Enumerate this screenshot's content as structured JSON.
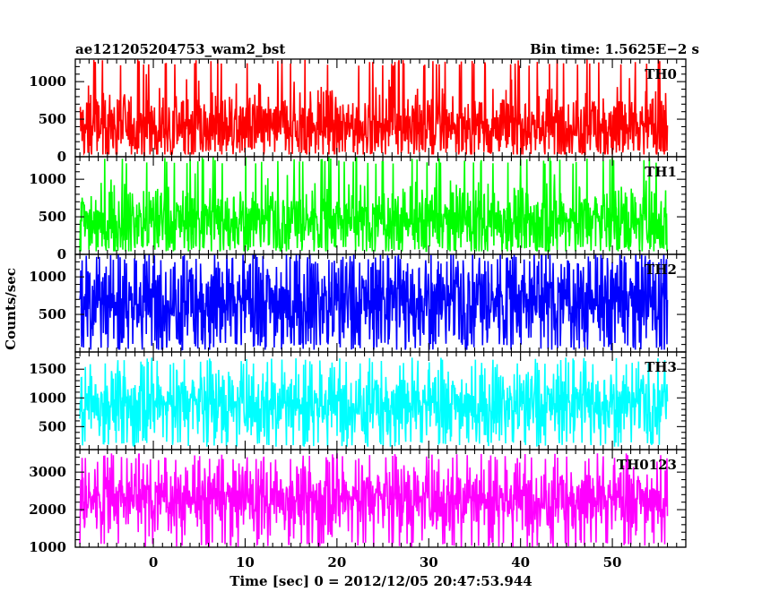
{
  "chart_data": {
    "type": "line",
    "title_left": "ae121205204753_wam2_bst",
    "title_right": "Bin time: 1.5625E−2 s",
    "xlabel": "Time [sec] 0 = 2012/12/05 20:47:53.944",
    "ylabel": "Counts/sec",
    "xlim": [
      -8.5,
      58
    ],
    "xticks": [
      0,
      10,
      20,
      30,
      40,
      50
    ],
    "data_x_range": [
      -8,
      56
    ],
    "bin_time": 0.015625,
    "panels": [
      {
        "name": "TH0",
        "color": "#ff0000",
        "ylim": [
          0,
          1300
        ],
        "yticks": [
          0,
          500,
          1000
        ],
        "data_min": 30,
        "data_max": 1300,
        "mean": 420,
        "spread": 230
      },
      {
        "name": "TH1",
        "color": "#00ff00",
        "ylim": [
          0,
          1300
        ],
        "yticks": [
          0,
          500,
          1000
        ],
        "data_min": 40,
        "data_max": 1300,
        "mean": 450,
        "spread": 230
      },
      {
        "name": "TH2",
        "color": "#0000ff",
        "ylim": [
          0,
          1300
        ],
        "yticks": [
          500,
          1000
        ],
        "data_min": 30,
        "data_max": 1300,
        "mean": 680,
        "spread": 320
      },
      {
        "name": "TH3",
        "color": "#00ffff",
        "ylim": [
          100,
          1800
        ],
        "yticks": [
          500,
          1000,
          1500
        ],
        "data_min": 150,
        "data_max": 1700,
        "mean": 900,
        "spread": 300
      },
      {
        "name": "TH0123",
        "color": "#ff00ff",
        "ylim": [
          1000,
          3600
        ],
        "yticks": [
          1000,
          2000,
          3000
        ],
        "data_min": 1000,
        "data_max": 3500,
        "mean": 2300,
        "spread": 450
      }
    ]
  }
}
